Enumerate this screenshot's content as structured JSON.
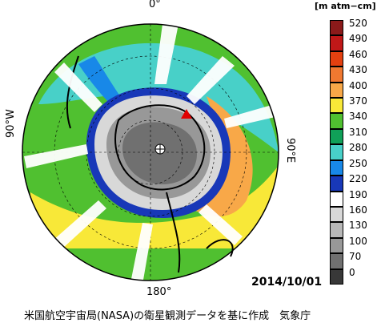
{
  "map": {
    "date": "2014/10/01",
    "longitude_labels": {
      "top": "0°",
      "bottom": "180°",
      "left": "90°W",
      "right": "90°E"
    },
    "credit": "米国航空宇宙局(NASA)の衛星観測データを基に作成　気象庁"
  },
  "legend": {
    "unit": "[m atm−cm]",
    "ticks": [
      "520",
      "490",
      "460",
      "430",
      "400",
      "370",
      "340",
      "310",
      "280",
      "250",
      "220",
      "190",
      "160",
      "130",
      "100",
      "70",
      "0"
    ],
    "colors": [
      "#8b1a1a",
      "#c01818",
      "#e44010",
      "#f07830",
      "#f8a848",
      "#f8e838",
      "#50c030",
      "#10a058",
      "#48d0c8",
      "#1888e8",
      "#1838b8",
      "#ffffff",
      "#d8d8d8",
      "#b8b8b8",
      "#989898",
      "#707070",
      "#383838"
    ]
  }
}
